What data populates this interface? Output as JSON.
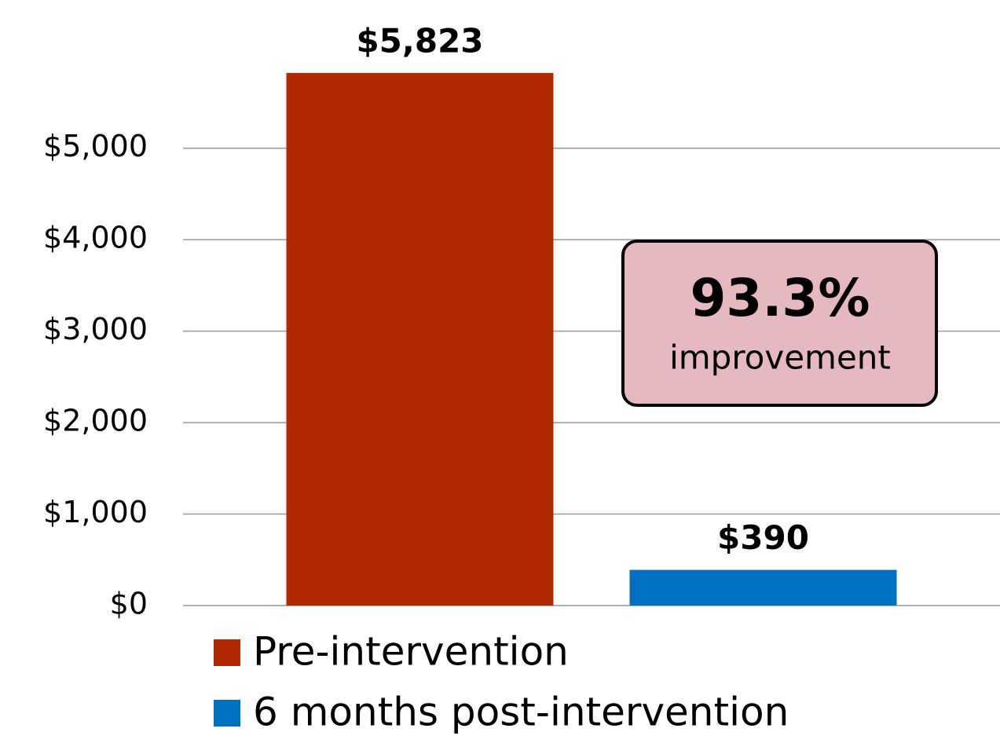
{
  "chart_data": {
    "type": "bar",
    "categories": [
      null
    ],
    "series": [
      {
        "name": "Pre-intervention",
        "color": "#b22800",
        "values": [
          5823
        ],
        "value_labels": [
          "$5,823"
        ]
      },
      {
        "name": "6 months post-intervention",
        "color": "#0070c0",
        "values": [
          390
        ],
        "value_labels": [
          "$390"
        ]
      }
    ],
    "ylim": [
      0,
      6500
    ],
    "yticks": [
      {
        "value": 0,
        "label": "$0"
      },
      {
        "value": 1000,
        "label": "$1,000"
      },
      {
        "value": 2000,
        "label": "$2,000"
      },
      {
        "value": 3000,
        "label": "$3,000"
      },
      {
        "value": 4000,
        "label": "$4,000"
      },
      {
        "value": 5000,
        "label": "$5,000"
      }
    ],
    "grid": true,
    "legend": "bottom",
    "annotation": {
      "value": "93.3%",
      "label": "improvement"
    }
  }
}
